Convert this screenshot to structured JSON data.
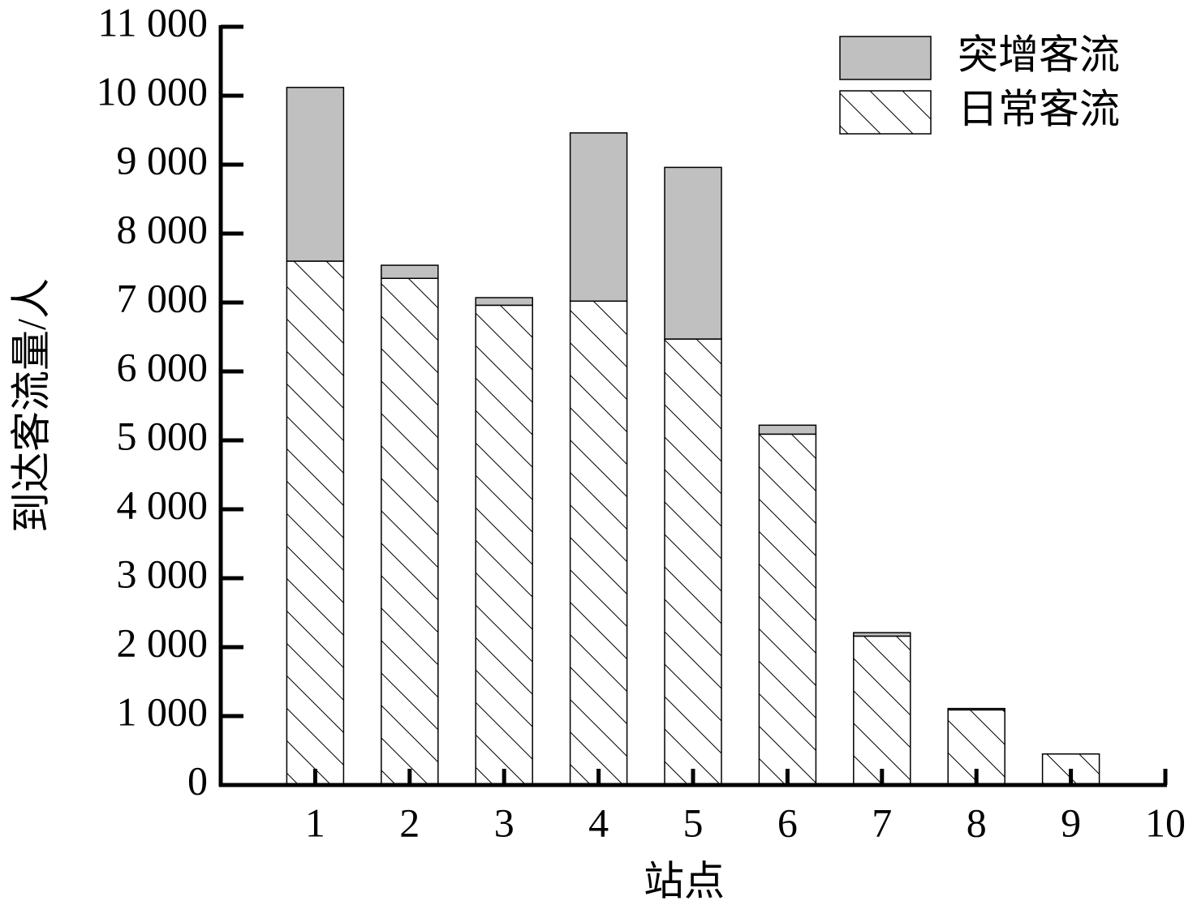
{
  "chart_data": {
    "type": "bar",
    "stacked": true,
    "x_label": "站点",
    "y_label": "到达客流量/人",
    "x": [
      1,
      2,
      3,
      4,
      5,
      6,
      7,
      8,
      9,
      10
    ],
    "xlim": [
      0,
      10
    ],
    "xticks": [
      1,
      2,
      3,
      4,
      5,
      6,
      7,
      8,
      9,
      10
    ],
    "ylim": [
      0,
      11000
    ],
    "yticks": [
      0,
      {
        "value": 1000,
        "label": "1 000"
      },
      {
        "value": 2000,
        "label": "2 000"
      },
      {
        "value": 3000,
        "label": "3 000"
      },
      {
        "value": 4000,
        "label": "4 000"
      },
      {
        "value": 5000,
        "label": "5 000"
      },
      {
        "value": 6000,
        "label": "6 000"
      },
      {
        "value": 7000,
        "label": "7 000"
      },
      {
        "value": 8000,
        "label": "8 000"
      },
      {
        "value": 9000,
        "label": "9 000"
      },
      {
        "value": 10000,
        "label": "10 000"
      },
      {
        "value": 11000,
        "label": "11 000"
      }
    ],
    "legend": "top-right",
    "series": [
      {
        "name": "突增客流",
        "color": "#c0c0c0",
        "pattern": "solid",
        "values": [
          2520,
          190,
          110,
          2440,
          2490,
          130,
          50,
          20,
          0,
          null
        ]
      },
      {
        "name": "日常客流",
        "color": "#ffffff",
        "pattern": "hatch",
        "values": [
          7600,
          7350,
          6960,
          7020,
          6470,
          5090,
          2160,
          1090,
          450,
          null
        ]
      }
    ]
  }
}
